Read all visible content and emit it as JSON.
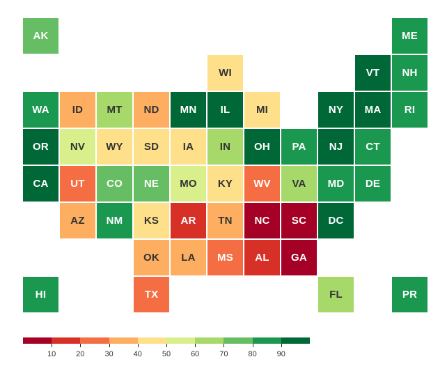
{
  "colors": {
    "c0": "#a50026",
    "c1": "#d73027",
    "c2": "#f46d43",
    "c3": "#fdae61",
    "c4": "#fee08b",
    "c5": "#d9ef8b",
    "c6": "#a6d96a",
    "c7": "#66bd63",
    "c8": "#1a9850",
    "c9": "#006837"
  },
  "tiles": [
    {
      "label": "AK",
      "col": 0,
      "row": 0,
      "bin": 7
    },
    {
      "label": "ME",
      "col": 10,
      "row": 0,
      "bin": 8
    },
    {
      "label": "WI",
      "col": 5,
      "row": 1,
      "bin": 4
    },
    {
      "label": "VT",
      "col": 9,
      "row": 1,
      "bin": 9
    },
    {
      "label": "NH",
      "col": 10,
      "row": 1,
      "bin": 8
    },
    {
      "label": "WA",
      "col": 0,
      "row": 2,
      "bin": 8
    },
    {
      "label": "ID",
      "col": 1,
      "row": 2,
      "bin": 3
    },
    {
      "label": "MT",
      "col": 2,
      "row": 2,
      "bin": 6
    },
    {
      "label": "ND",
      "col": 3,
      "row": 2,
      "bin": 3
    },
    {
      "label": "MN",
      "col": 4,
      "row": 2,
      "bin": 9
    },
    {
      "label": "IL",
      "col": 5,
      "row": 2,
      "bin": 9
    },
    {
      "label": "MI",
      "col": 6,
      "row": 2,
      "bin": 4
    },
    {
      "label": "NY",
      "col": 8,
      "row": 2,
      "bin": 9
    },
    {
      "label": "MA",
      "col": 9,
      "row": 2,
      "bin": 9
    },
    {
      "label": "RI",
      "col": 10,
      "row": 2,
      "bin": 8
    },
    {
      "label": "OR",
      "col": 0,
      "row": 3,
      "bin": 9
    },
    {
      "label": "NV",
      "col": 1,
      "row": 3,
      "bin": 5
    },
    {
      "label": "WY",
      "col": 2,
      "row": 3,
      "bin": 4
    },
    {
      "label": "SD",
      "col": 3,
      "row": 3,
      "bin": 4
    },
    {
      "label": "IA",
      "col": 4,
      "row": 3,
      "bin": 4
    },
    {
      "label": "IN",
      "col": 5,
      "row": 3,
      "bin": 6
    },
    {
      "label": "OH",
      "col": 6,
      "row": 3,
      "bin": 9
    },
    {
      "label": "PA",
      "col": 7,
      "row": 3,
      "bin": 8
    },
    {
      "label": "NJ",
      "col": 8,
      "row": 3,
      "bin": 9
    },
    {
      "label": "CT",
      "col": 9,
      "row": 3,
      "bin": 8
    },
    {
      "label": "CA",
      "col": 0,
      "row": 4,
      "bin": 9
    },
    {
      "label": "UT",
      "col": 1,
      "row": 4,
      "bin": 2
    },
    {
      "label": "CO",
      "col": 2,
      "row": 4,
      "bin": 7
    },
    {
      "label": "NE",
      "col": 3,
      "row": 4,
      "bin": 7
    },
    {
      "label": "MO",
      "col": 4,
      "row": 4,
      "bin": 5
    },
    {
      "label": "KY",
      "col": 5,
      "row": 4,
      "bin": 4
    },
    {
      "label": "WV",
      "col": 6,
      "row": 4,
      "bin": 2
    },
    {
      "label": "VA",
      "col": 7,
      "row": 4,
      "bin": 6
    },
    {
      "label": "MD",
      "col": 8,
      "row": 4,
      "bin": 8
    },
    {
      "label": "DE",
      "col": 9,
      "row": 4,
      "bin": 8
    },
    {
      "label": "AZ",
      "col": 1,
      "row": 5,
      "bin": 3
    },
    {
      "label": "NM",
      "col": 2,
      "row": 5,
      "bin": 8
    },
    {
      "label": "KS",
      "col": 3,
      "row": 5,
      "bin": 4
    },
    {
      "label": "AR",
      "col": 4,
      "row": 5,
      "bin": 1
    },
    {
      "label": "TN",
      "col": 5,
      "row": 5,
      "bin": 3
    },
    {
      "label": "NC",
      "col": 6,
      "row": 5,
      "bin": 0
    },
    {
      "label": "SC",
      "col": 7,
      "row": 5,
      "bin": 0
    },
    {
      "label": "DC",
      "col": 8,
      "row": 5,
      "bin": 9
    },
    {
      "label": "OK",
      "col": 3,
      "row": 6,
      "bin": 3
    },
    {
      "label": "LA",
      "col": 4,
      "row": 6,
      "bin": 3
    },
    {
      "label": "MS",
      "col": 5,
      "row": 6,
      "bin": 2
    },
    {
      "label": "AL",
      "col": 6,
      "row": 6,
      "bin": 1
    },
    {
      "label": "GA",
      "col": 7,
      "row": 6,
      "bin": 0
    },
    {
      "label": "HI",
      "col": 0,
      "row": 7,
      "bin": 8
    },
    {
      "label": "TX",
      "col": 3,
      "row": 7,
      "bin": 2
    },
    {
      "label": "FL",
      "col": 8,
      "row": 7,
      "bin": 6
    },
    {
      "label": "PR",
      "col": 10,
      "row": 7,
      "bin": 8
    }
  ],
  "legend": {
    "tick_labels": [
      "10",
      "20",
      "30",
      "40",
      "50",
      "60",
      "70",
      "80",
      "90"
    ]
  }
}
